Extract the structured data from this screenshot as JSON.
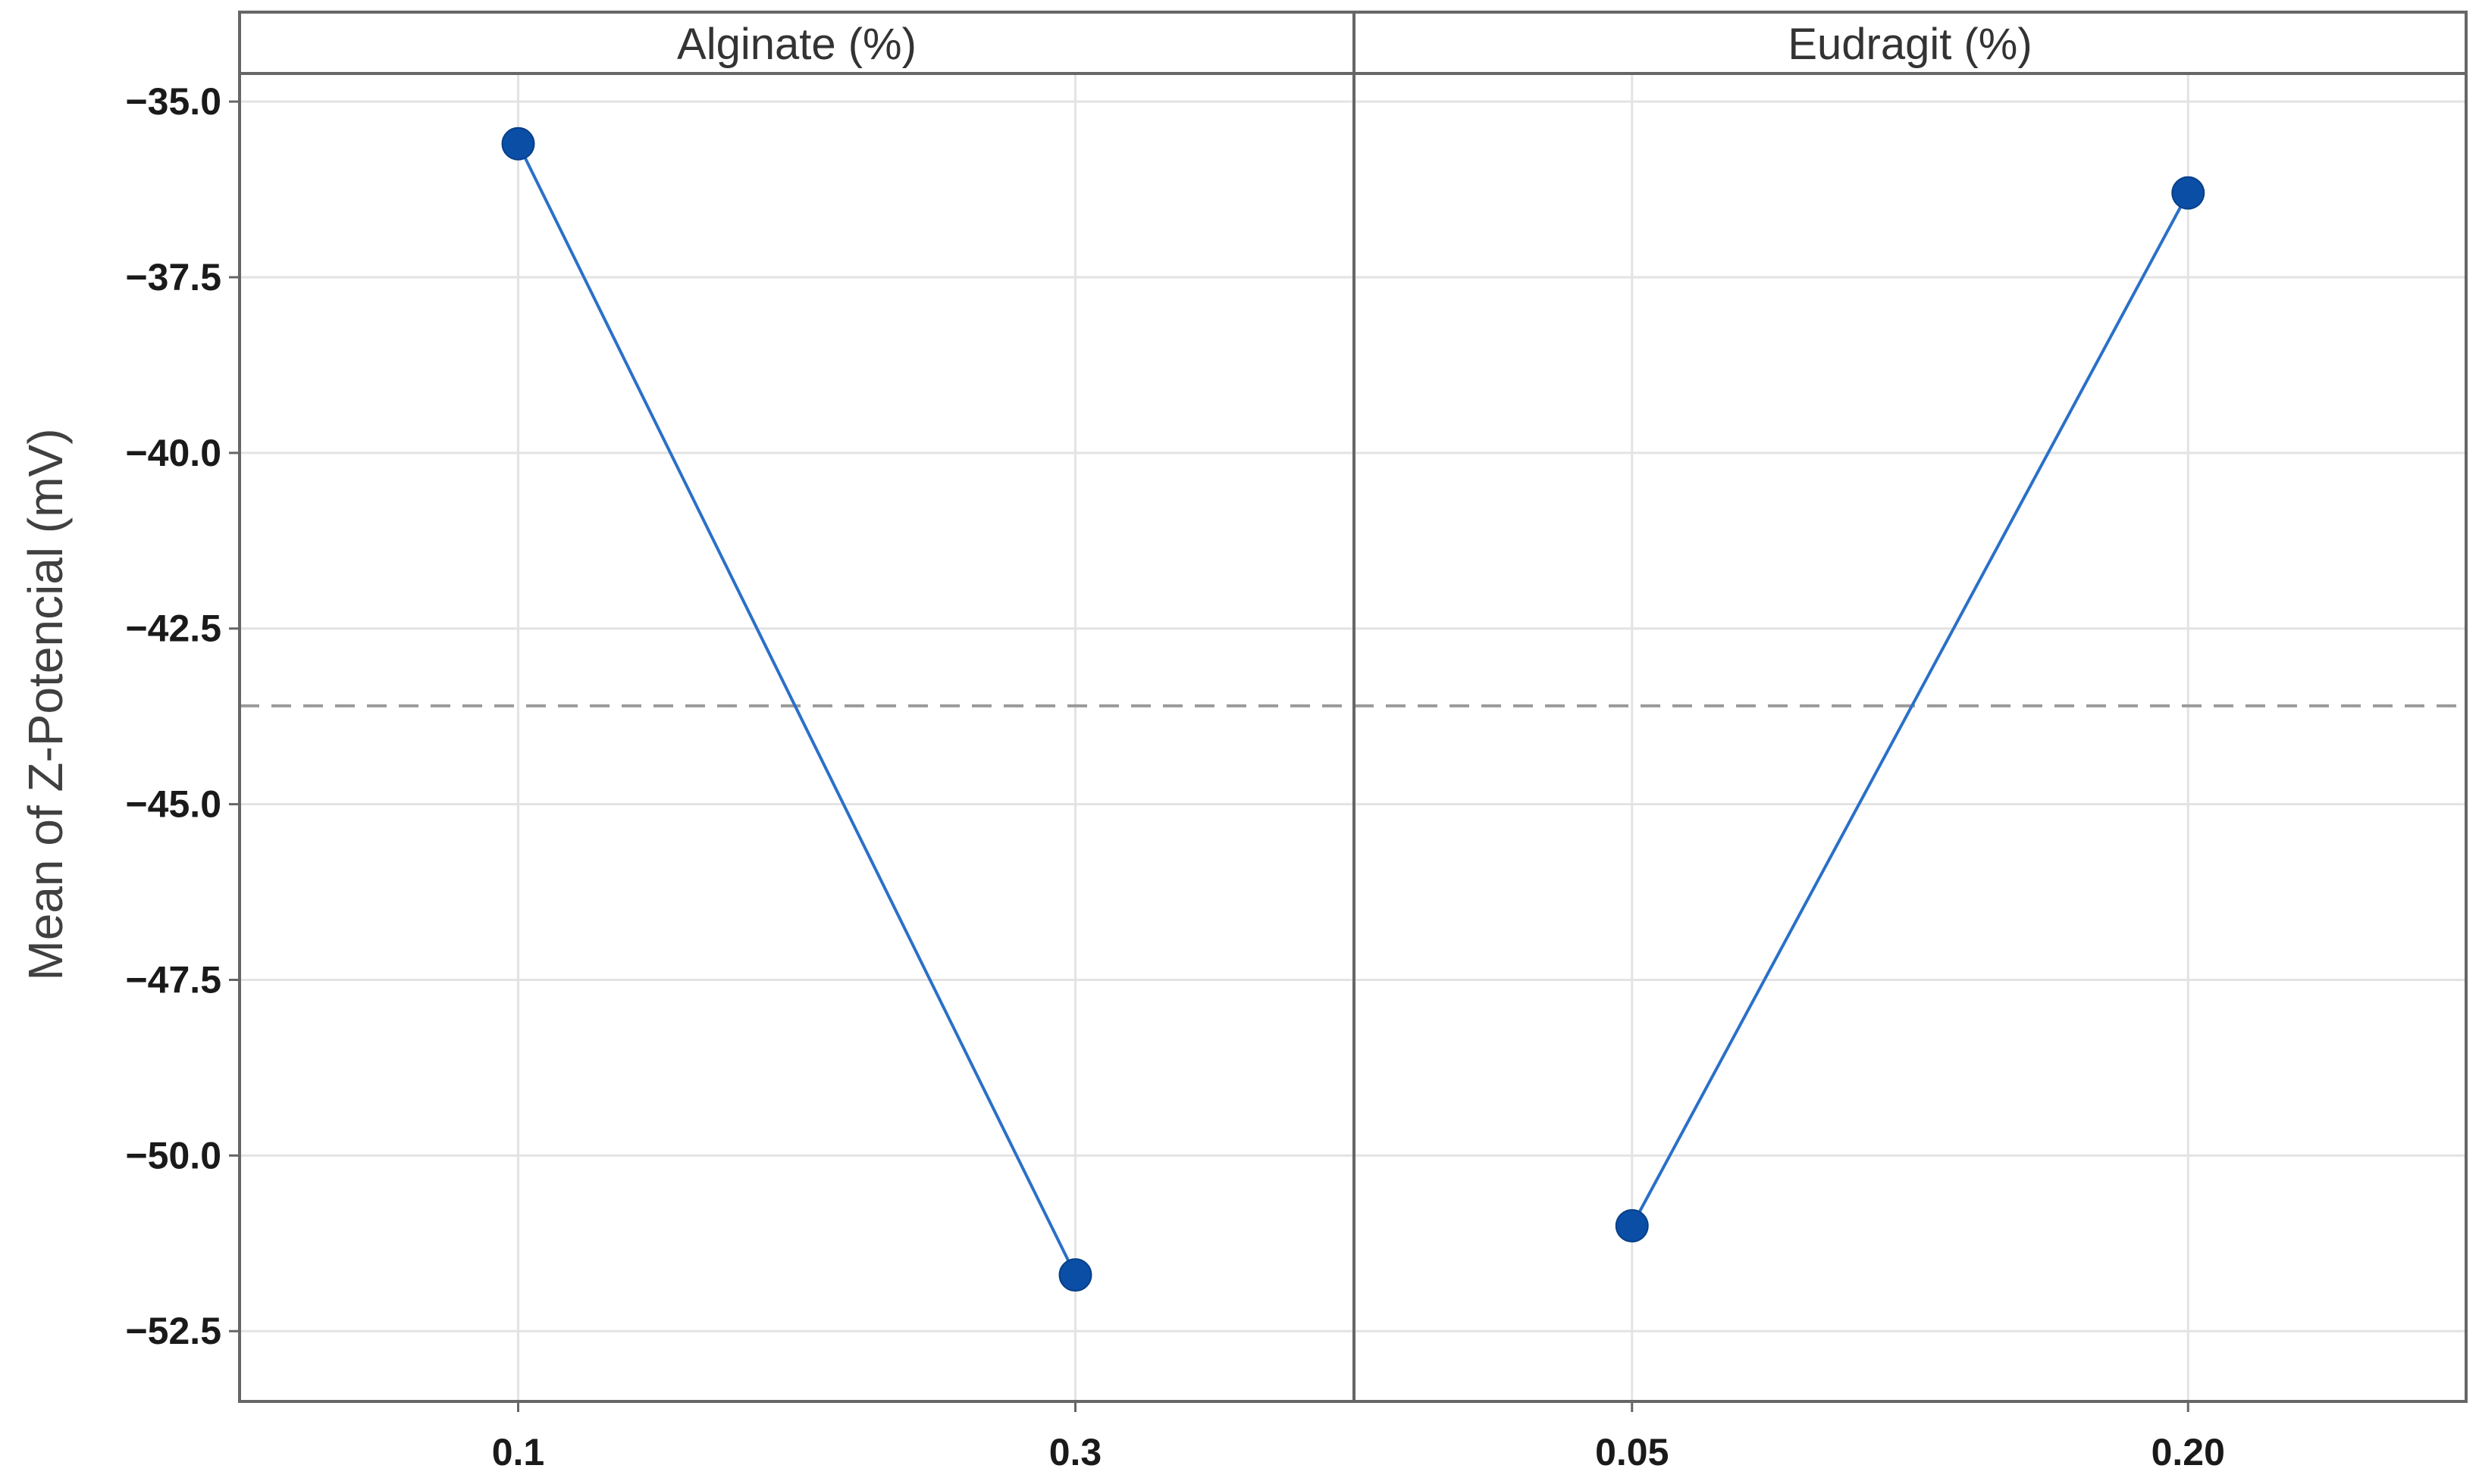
{
  "chart_data": {
    "type": "line",
    "title": "",
    "ylabel": "Mean of Z-Potencial (mV)",
    "ylim": [
      -53.5,
      -34.6
    ],
    "yticks": [
      -35.0,
      -37.5,
      -40.0,
      -42.5,
      -45.0,
      -47.5,
      -50.0,
      -52.5
    ],
    "ytick_labels": [
      "−35.0",
      "−37.5",
      "−40.0",
      "−42.5",
      "−45.0",
      "−47.5",
      "−50.0",
      "−52.5"
    ],
    "reference_line": {
      "y": -43.6,
      "style": "dashed",
      "color": "#999999"
    },
    "grid": true,
    "marker_color": "#0a4ea6",
    "line_color": "#2a70c8",
    "panels": [
      {
        "title": "Alginate (%)",
        "categories": [
          "0.1",
          "0.3"
        ],
        "values": [
          -35.6,
          -51.7
        ]
      },
      {
        "title": "Eudragit (%)",
        "categories": [
          "0.05",
          "0.20"
        ],
        "values": [
          -51.0,
          -36.3
        ]
      }
    ]
  }
}
